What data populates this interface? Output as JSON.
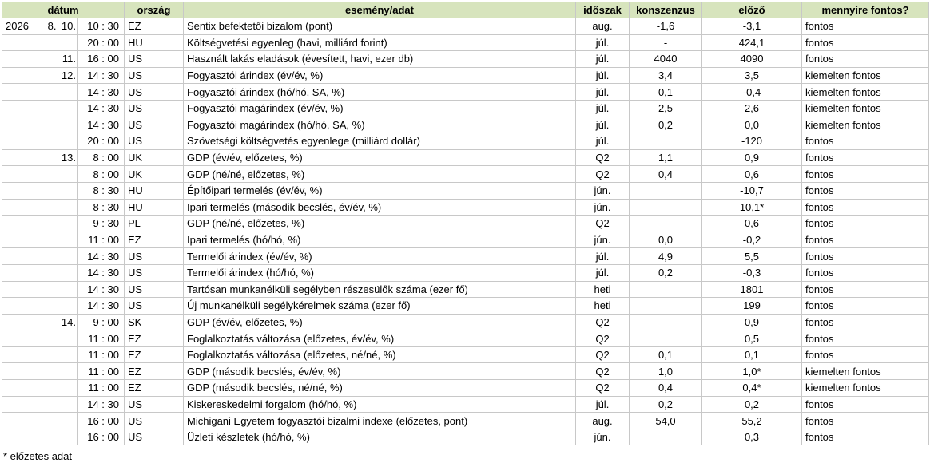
{
  "header": [
    "dátum",
    "ország",
    "esemény/adat",
    "időszak",
    "konszenzus",
    "előző",
    "mennyire fontos?"
  ],
  "rows": [
    [
      "2026",
      "8.",
      "10.",
      "10 : 30",
      "EZ",
      "Sentix befektetői bizalom (pont)",
      "aug.",
      "-1,6",
      "-3,1",
      "fontos"
    ],
    [
      null,
      null,
      null,
      "20 : 00",
      "HU",
      "Költségvetési egyenleg (havi, milliárd forint)",
      "júl.",
      "-",
      "424,1",
      "fontos"
    ],
    [
      null,
      null,
      "11.",
      "16 : 00",
      "US",
      "Használt lakás eladások (évesített, havi, ezer db)",
      "júl.",
      "4040",
      "4090",
      "fontos"
    ],
    [
      null,
      null,
      "12.",
      "14 : 30",
      "US",
      "Fogyasztói árindex (év/év, %)",
      "júl.",
      "3,4",
      "3,5",
      "kiemelten fontos"
    ],
    [
      null,
      null,
      null,
      "14 : 30",
      "US",
      "Fogyasztói árindex (hó/hó, SA, %)",
      "júl.",
      "0,1",
      "-0,4",
      "kiemelten fontos"
    ],
    [
      null,
      null,
      null,
      "14 : 30",
      "US",
      "Fogyasztói magárindex (év/év, %)",
      "júl.",
      "2,5",
      "2,6",
      "kiemelten fontos"
    ],
    [
      null,
      null,
      null,
      "14 : 30",
      "US",
      "Fogyasztói magárindex (hó/hó, SA, %)",
      "júl.",
      "0,2",
      "0,0",
      "kiemelten fontos"
    ],
    [
      null,
      null,
      null,
      "20 : 00",
      "US",
      "Szövetségi költségvetés egyenlege (milliárd dollár)",
      "júl.",
      null,
      "-120",
      "fontos"
    ],
    [
      null,
      null,
      "13.",
      "8 : 00",
      "UK",
      "GDP (év/év, előzetes, %)",
      "Q2",
      "1,1",
      "0,9",
      "fontos"
    ],
    [
      null,
      null,
      null,
      "8 : 00",
      "UK",
      "GDP (né/né, előzetes, %)",
      "Q2",
      "0,4",
      "0,6",
      "fontos"
    ],
    [
      null,
      null,
      null,
      "8 : 30",
      "HU",
      "Építőipari termelés (év/év, %)",
      "jún.",
      null,
      "-10,7",
      "fontos"
    ],
    [
      null,
      null,
      null,
      "8 : 30",
      "HU",
      "Ipari termelés (második becslés, év/év, %)",
      "jún.",
      null,
      "10,1*",
      "fontos"
    ],
    [
      null,
      null,
      null,
      "9 : 30",
      "PL",
      "GDP (né/né, előzetes, %)",
      "Q2",
      null,
      "0,6",
      "fontos"
    ],
    [
      null,
      null,
      null,
      "11 : 00",
      "EZ",
      "Ipari termelés (hó/hó, %)",
      "jún.",
      "0,0",
      "-0,2",
      "fontos"
    ],
    [
      null,
      null,
      null,
      "14 : 30",
      "US",
      "Termelői árindex (év/év, %)",
      "júl.",
      "4,9",
      "5,5",
      "fontos"
    ],
    [
      null,
      null,
      null,
      "14 : 30",
      "US",
      "Termelői árindex (hó/hó, %)",
      "júl.",
      "0,2",
      "-0,3",
      "fontos"
    ],
    [
      null,
      null,
      null,
      "14 : 30",
      "US",
      "Tartósan munkanélküli segélyben részesülők száma (ezer fő)",
      "heti",
      null,
      "1801",
      "fontos"
    ],
    [
      null,
      null,
      null,
      "14 : 30",
      "US",
      "Új munkanélküli segélykérelmek száma (ezer fő)",
      "heti",
      null,
      "199",
      "fontos"
    ],
    [
      null,
      null,
      "14.",
      "9 : 00",
      "SK",
      "GDP (év/év, előzetes, %)",
      "Q2",
      null,
      "0,9",
      "fontos"
    ],
    [
      null,
      null,
      null,
      "11 : 00",
      "EZ",
      "Foglalkoztatás változása (előzetes, év/év, %)",
      "Q2",
      null,
      "0,5",
      "fontos"
    ],
    [
      null,
      null,
      null,
      "11 : 00",
      "EZ",
      "Foglalkoztatás változása (előzetes, né/né, %)",
      "Q2",
      "0,1",
      "0,1",
      "fontos"
    ],
    [
      null,
      null,
      null,
      "11 : 00",
      "EZ",
      "GDP (második becslés, év/év, %)",
      "Q2",
      "1,0",
      "1,0*",
      "kiemelten fontos"
    ],
    [
      null,
      null,
      null,
      "11 : 00",
      "EZ",
      "GDP (második becslés, né/né, %)",
      "Q2",
      "0,4",
      "0,4*",
      "kiemelten fontos"
    ],
    [
      null,
      null,
      null,
      "14 : 30",
      "US",
      "Kiskereskedelmi forgalom (hó/hó, %)",
      "júl.",
      "0,2",
      "0,2",
      "fontos"
    ],
    [
      null,
      null,
      null,
      "16 : 00",
      "US",
      "Michigani Egyetem fogyasztói bizalmi indexe (előzetes, pont)",
      "aug.",
      "54,0",
      "55,2",
      "fontos"
    ],
    [
      null,
      null,
      null,
      "16 : 00",
      "US",
      "Üzleti készletek (hó/hó, %)",
      "jún.",
      null,
      "0,3",
      "fontos"
    ]
  ],
  "footnote": "* előzetes adat"
}
